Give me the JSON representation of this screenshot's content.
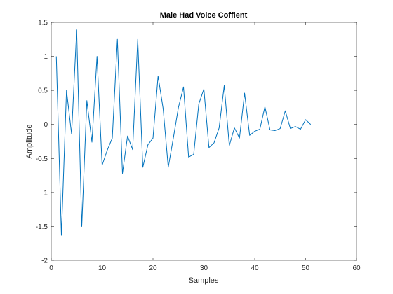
{
  "chart_data": {
    "type": "line",
    "title": "Male Had Voice Coffient",
    "xlabel": "Samples",
    "ylabel": "Amplitude",
    "xlim": [
      0,
      60
    ],
    "ylim": [
      -2,
      1.5
    ],
    "xticks": [
      0,
      10,
      20,
      30,
      40,
      50,
      60
    ],
    "yticks": [
      -2,
      -1.5,
      -1,
      -0.5,
      0,
      0.5,
      1,
      1.5
    ],
    "xtick_labels": [
      "0",
      "10",
      "20",
      "30",
      "40",
      "50",
      "60"
    ],
    "ytick_labels": [
      "-2",
      "-1.5",
      "-1",
      "-0.5",
      "0",
      "0.5",
      "1",
      "1.5"
    ],
    "grid": false,
    "line_color": "#0072BD",
    "series": [
      {
        "x": [
          1,
          2,
          3,
          4,
          5,
          6,
          7,
          8,
          9,
          10,
          11,
          12,
          13,
          14,
          15,
          16,
          17,
          18,
          19,
          20,
          21,
          22,
          23,
          24,
          25,
          26,
          27,
          28,
          29,
          30,
          31,
          32,
          33,
          34,
          35,
          36,
          37,
          38,
          39,
          40,
          41,
          42,
          43,
          44,
          45,
          46,
          47,
          48,
          49,
          50,
          51
        ],
        "values": [
          1.0,
          -1.63,
          0.5,
          -0.14,
          1.39,
          -1.5,
          0.35,
          -0.26,
          1.0,
          -0.6,
          -0.38,
          -0.2,
          1.25,
          -0.72,
          -0.17,
          -0.37,
          1.25,
          -0.63,
          -0.3,
          -0.2,
          0.71,
          0.23,
          -0.63,
          -0.2,
          0.25,
          0.55,
          -0.48,
          -0.44,
          0.3,
          0.52,
          -0.34,
          -0.27,
          -0.05,
          0.57,
          -0.31,
          -0.05,
          -0.2,
          0.46,
          -0.16,
          -0.1,
          -0.07,
          0.26,
          -0.08,
          -0.09,
          -0.06,
          0.2,
          -0.06,
          -0.03,
          -0.07,
          0.07,
          0.0
        ]
      }
    ]
  }
}
